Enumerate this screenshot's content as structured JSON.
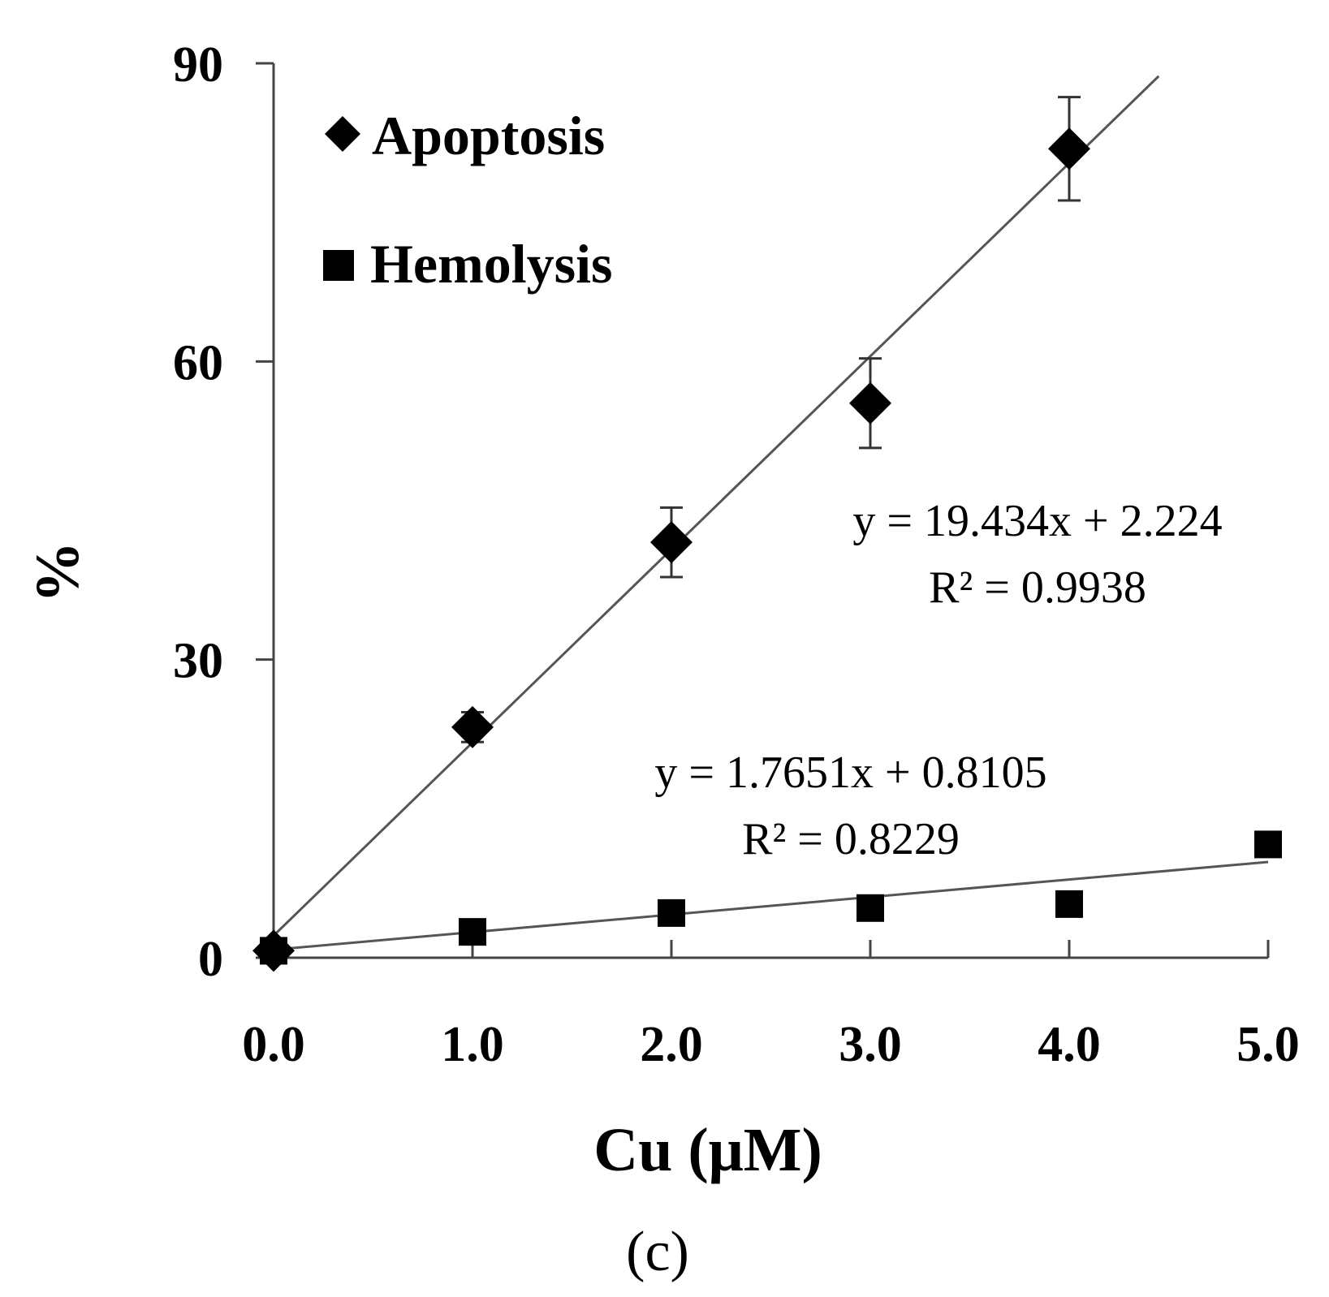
{
  "chart_data": {
    "type": "scatter",
    "xlabel": "Cu (μM)",
    "ylabel": "%",
    "panel_label": "(c)",
    "xlim": [
      0,
      5
    ],
    "ylim": [
      0,
      90
    ],
    "x_ticks": [
      "0.0",
      "1.0",
      "2.0",
      "3.0",
      "4.0",
      "5.0"
    ],
    "y_ticks": [
      "0",
      "30",
      "60",
      "90"
    ],
    "x_tick_values": [
      0,
      1,
      2,
      3,
      4,
      5
    ],
    "y_tick_values": [
      0,
      30,
      60,
      90
    ],
    "grid": false,
    "legend_position": "top-left",
    "series": [
      {
        "name": "Apoptosis",
        "marker": "diamond",
        "color": "#000000",
        "x": [
          0,
          1,
          2,
          3,
          4
        ],
        "y": [
          0.7,
          23.2,
          41.8,
          55.8,
          81.4
        ],
        "error": [
          0,
          1.5,
          3.5,
          4.5,
          5.2
        ],
        "trendline": {
          "slope": 19.434,
          "intercept": 2.224,
          "x_range": [
            0,
            4.45
          ]
        },
        "equation": "y = 19.434x + 2.224",
        "r_squared": "R² = 0.9938"
      },
      {
        "name": "Hemolysis",
        "marker": "square",
        "color": "#000000",
        "x": [
          0,
          1,
          2,
          3,
          4,
          5
        ],
        "y": [
          0.7,
          2.6,
          4.5,
          5.0,
          5.4,
          11.4
        ],
        "trendline": {
          "slope": 1.7651,
          "intercept": 0.8105,
          "x_range": [
            0,
            5
          ]
        },
        "equation": "y = 1.7651x + 0.8105",
        "r_squared": "R² = 0.8229"
      }
    ]
  }
}
